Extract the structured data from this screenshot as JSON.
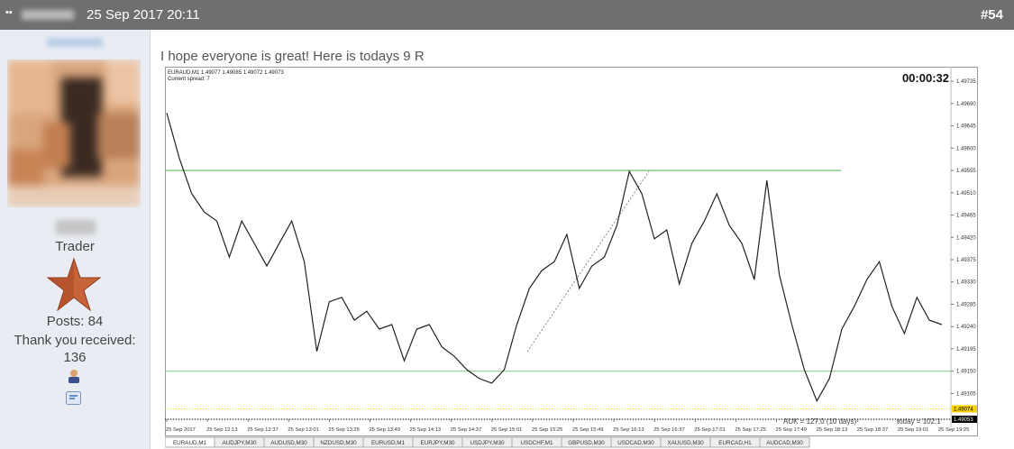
{
  "post": {
    "date": "25 Sep 2017 20:11",
    "number": "#54",
    "text": "I hope everyone is great! Here is todays 9 R"
  },
  "user": {
    "title": "Trader",
    "posts": "Posts: 84",
    "thanks_label": "Thank you received:",
    "thanks": "136"
  },
  "chart_data": {
    "type": "line",
    "symbol_info": "EURAUD,M1  1.49077 1.49085 1.49072 1.49073",
    "spread": "Current spread: 7",
    "timer": "00:00:32",
    "stats": [
      "AUK = 127,0   (10 days)",
      "today = 102.1"
    ],
    "time_labels": [
      "25 Sep 2017",
      "25 Sep 12:13",
      "25 Sep 12:37",
      "25 Sep 13:01",
      "25 Sep 13:25",
      "25 Sep 13:49",
      "25 Sep 14:13",
      "25 Sep 14:37",
      "25 Sep 15:01",
      "25 Sep 15:25",
      "25 Sep 15:49",
      "25 Sep 16:13",
      "25 Sep 16:37",
      "25 Sep 17:01",
      "25 Sep 17:25",
      "25 Sep 17:49",
      "25 Sep 18:13",
      "25 Sep 18:37",
      "25 Sep 19:01",
      "25 Sep 19:25"
    ],
    "values": [
      1.49671,
      1.4958,
      1.49508,
      1.49471,
      1.49453,
      1.4938,
      1.49453,
      1.49408,
      1.49362,
      1.49408,
      1.49453,
      1.49371,
      1.4919,
      1.4929,
      1.49299,
      1.49253,
      1.49271,
      1.49235,
      1.49244,
      1.49171,
      1.49235,
      1.49244,
      1.49199,
      1.4918,
      1.49153,
      1.49135,
      1.49126,
      1.49153,
      1.49244,
      1.49317,
      1.49353,
      1.49371,
      1.49426,
      1.49317,
      1.49362,
      1.4938,
      1.49444,
      1.49553,
      1.49508,
      1.49417,
      1.49435,
      1.49326,
      1.49408,
      1.49453,
      1.49508,
      1.49444,
      1.49408,
      1.49335,
      1.49535,
      1.49344,
      1.49244,
      1.49153,
      1.4909,
      1.49135,
      1.49235,
      1.49281,
      1.49335,
      1.49371,
      1.49281,
      1.49226,
      1.49299,
      1.49253,
      1.49244
    ],
    "color": "#222222",
    "ylim": [
      1.49053,
      1.49757
    ],
    "yticks": [
      1.49735,
      {
        "value": 1.4969,
        "label": "1.49690"
      },
      1.49645,
      {
        "value": 1.496,
        "label": "1.49600"
      },
      1.49555,
      {
        "value": 1.4951,
        "label": "1.49510"
      },
      1.49465,
      {
        "value": 1.4942,
        "label": "1.49420"
      },
      1.49375,
      {
        "value": 1.4933,
        "label": "1.49330"
      },
      1.49285,
      {
        "value": 1.4924,
        "label": "1.49240"
      },
      1.49195,
      {
        "value": 1.4915,
        "label": "1.49150"
      },
      1.49105
    ],
    "levels": [
      {
        "value": 1.49555,
        "color": "#5cb85c"
      },
      {
        "value": 1.4915,
        "color": "#8fd08f"
      }
    ],
    "price_markers": [
      {
        "value": 1.49074,
        "color": "#f5d000"
      },
      {
        "value": 1.49053,
        "color": "#000000"
      }
    ]
  },
  "tabs": [
    "EURAUD,M1",
    "AUDJPY,M30",
    "AUDUSD,M30",
    "NZDUSD,M30",
    "EURUSD,M1",
    "EURJPY,M30",
    "USDJPY,M30",
    "USDCHF,M1",
    "GBPUSD,M30",
    "USDCAD,M30",
    "XAUUSD,M30",
    "EURCAD,H1",
    "AUDCAD,M30"
  ]
}
